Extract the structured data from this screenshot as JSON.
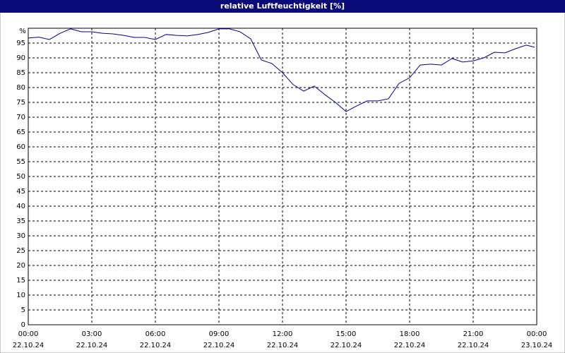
{
  "chart_data": {
    "type": "line",
    "title": "relative Luftfeuchtigkeit [%]",
    "y_label": "%",
    "x": [
      0,
      0.5,
      1,
      1.5,
      2,
      2.5,
      3,
      3.5,
      4,
      4.5,
      5,
      5.5,
      6,
      6.5,
      7,
      7.5,
      8,
      8.5,
      9,
      9.5,
      10,
      10.5,
      11,
      11.5,
      12,
      12.5,
      13,
      13.5,
      14,
      14.5,
      15,
      15.5,
      16,
      16.5,
      17,
      17.5,
      18,
      18.5,
      19,
      19.5,
      20,
      20.5,
      21,
      21.5,
      22,
      22.5,
      23,
      23.5,
      23.9
    ],
    "series": [
      {
        "name": "relative Luftfeuchtigkeit",
        "color": "#000099",
        "values": [
          96.7,
          97,
          96.2,
          98.3,
          99.8,
          98.8,
          98.8,
          98.3,
          98.1,
          97.6,
          96.9,
          96.9,
          96.2,
          97.9,
          97.6,
          97.4,
          97.9,
          98.6,
          99.8,
          99.8,
          98.8,
          96.4,
          89.3,
          88.1,
          85,
          81,
          78.8,
          80.5,
          77.6,
          75,
          71.9,
          73.8,
          75.5,
          75.5,
          76.2,
          81.4,
          83.3,
          87.6,
          87.9,
          87.6,
          89.8,
          88.6,
          89,
          90,
          91.9,
          91.7,
          93.1,
          94.3,
          93.6
        ]
      }
    ],
    "xlim": [
      0,
      24
    ],
    "xticks": [
      {
        "value": 0,
        "label": "00:00"
      },
      {
        "value": 3,
        "label": "03:00"
      },
      {
        "value": 6,
        "label": "06:00"
      },
      {
        "value": 9,
        "label": "09:00"
      },
      {
        "value": 12,
        "label": "12:00"
      },
      {
        "value": 15,
        "label": "15:00"
      },
      {
        "value": 18,
        "label": "18:00"
      },
      {
        "value": 21,
        "label": "21:00"
      },
      {
        "value": 24,
        "label": "00:00"
      }
    ],
    "xtick_dates": [
      "22.10.24",
      "22.10.24",
      "22.10.24",
      "22.10.24",
      "22.10.24",
      "22.10.24",
      "22.10.24",
      "22.10.24",
      "23.10.24"
    ],
    "ylim": [
      0,
      100
    ],
    "yticks": [
      0,
      5,
      10,
      15,
      20,
      25,
      30,
      35,
      40,
      45,
      50,
      55,
      60,
      65,
      70,
      75,
      80,
      85,
      90,
      95
    ],
    "grid": true
  }
}
